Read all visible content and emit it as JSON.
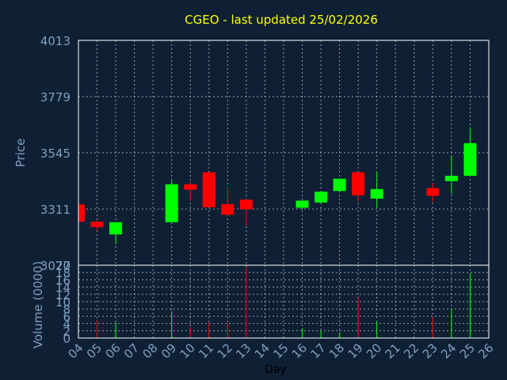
{
  "title": "CGEO - last updated 25/02/2026",
  "colors": {
    "background": "#0f2035",
    "title": "#ffff00",
    "axis_text": "#7f9fc0",
    "frame": "#ffffff",
    "grid": "#ffffff",
    "up": "#00ff00",
    "down": "#ff0000",
    "day_label": "#000000"
  },
  "chart_data": [
    {
      "type": "candlestick",
      "ylabel": "Price",
      "ylim": [
        3077,
        4013
      ],
      "yticks": [
        4013,
        3779,
        3545,
        3311,
        3077
      ],
      "grid": true,
      "x_categories": [
        "04",
        "05",
        "06",
        "07",
        "08",
        "09",
        "10",
        "11",
        "12",
        "13",
        "14",
        "15",
        "16",
        "17",
        "18",
        "19",
        "20",
        "21",
        "22",
        "23",
        "24",
        "25",
        "26"
      ],
      "candles": [
        {
          "day": "04",
          "open": 3330,
          "high": 3338,
          "low": 3252,
          "close": 3258
        },
        {
          "day": "05",
          "open": 3258,
          "high": 3262,
          "low": 3220,
          "close": 3236
        },
        {
          "day": "06",
          "open": 3205,
          "high": 3256,
          "low": 3165,
          "close": 3256
        },
        {
          "day": "09",
          "open": 3256,
          "high": 3429,
          "low": 3256,
          "close": 3414
        },
        {
          "day": "10",
          "open": 3414,
          "high": 3425,
          "low": 3345,
          "close": 3391
        },
        {
          "day": "11",
          "open": 3464,
          "high": 3464,
          "low": 3318,
          "close": 3318
        },
        {
          "day": "12",
          "open": 3331,
          "high": 3403,
          "low": 3282,
          "close": 3287
        },
        {
          "day": "13",
          "open": 3350,
          "high": 3350,
          "low": 3240,
          "close": 3310
        },
        {
          "day": "16",
          "open": 3316,
          "high": 3346,
          "low": 3310,
          "close": 3346
        },
        {
          "day": "17",
          "open": 3338,
          "high": 3386,
          "low": 3334,
          "close": 3383
        },
        {
          "day": "18",
          "open": 3386,
          "high": 3437,
          "low": 3383,
          "close": 3437
        },
        {
          "day": "19",
          "open": 3464,
          "high": 3464,
          "low": 3342,
          "close": 3368
        },
        {
          "day": "20",
          "open": 3354,
          "high": 3464,
          "low": 3317,
          "close": 3394
        },
        {
          "day": "23",
          "open": 3398,
          "high": 3419,
          "low": 3340,
          "close": 3366
        },
        {
          "day": "24",
          "open": 3427,
          "high": 3531,
          "low": 3374,
          "close": 3449
        },
        {
          "day": "25",
          "open": 3449,
          "high": 3652,
          "low": 3449,
          "close": 3585
        }
      ]
    },
    {
      "type": "bar",
      "ylabel": "Volume (0000)",
      "xlabel": "Day",
      "ylim": [
        0,
        20
      ],
      "yticks": [
        20,
        18,
        16,
        14,
        12,
        10,
        8,
        6,
        4,
        2,
        0
      ],
      "grid": true,
      "categories": [
        "04",
        "05",
        "06",
        "07",
        "08",
        "09",
        "10",
        "11",
        "12",
        "13",
        "14",
        "15",
        "16",
        "17",
        "18",
        "19",
        "20",
        "21",
        "22",
        "23",
        "24",
        "25",
        "26"
      ],
      "volumes": [
        {
          "day": "04",
          "value": 0.3
        },
        {
          "day": "05",
          "value": 5.0
        },
        {
          "day": "06",
          "value": 4.2
        },
        {
          "day": "09",
          "value": 7.3
        },
        {
          "day": "10",
          "value": 3.0
        },
        {
          "day": "11",
          "value": 4.2
        },
        {
          "day": "12",
          "value": 4.0
        },
        {
          "day": "13",
          "value": 19.5
        },
        {
          "day": "16",
          "value": 2.5
        },
        {
          "day": "17",
          "value": 2.0
        },
        {
          "day": "18",
          "value": 1.5
        },
        {
          "day": "19",
          "value": 11.0
        },
        {
          "day": "20",
          "value": 4.7
        },
        {
          "day": "23",
          "value": 5.7
        },
        {
          "day": "24",
          "value": 8.0
        },
        {
          "day": "25",
          "value": 17.7
        }
      ]
    }
  ]
}
